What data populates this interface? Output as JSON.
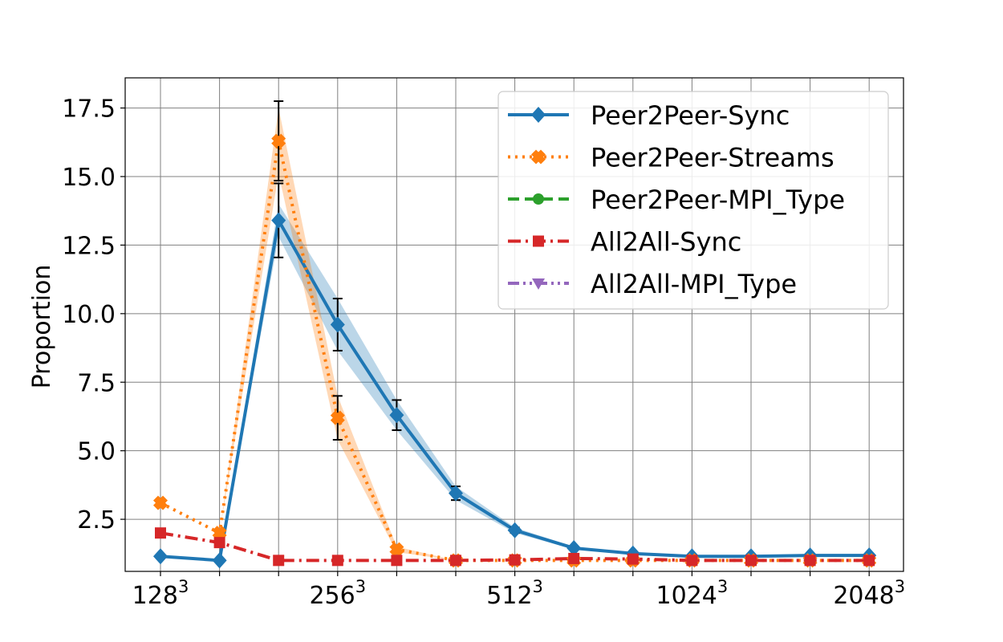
{
  "chart_data": {
    "type": "line",
    "xlabel": "",
    "ylabel": "Proportion",
    "grid": true,
    "legend_position": "top-right",
    "x_tick_labels": [
      {
        "base": "128",
        "exp": "3",
        "index": 0
      },
      {
        "base": "256",
        "exp": "3",
        "index": 3
      },
      {
        "base": "512",
        "exp": "3",
        "index": 6
      },
      {
        "base": "1024",
        "exp": "3",
        "index": 9
      },
      {
        "base": "2048",
        "exp": "3",
        "index": 12
      }
    ],
    "y_ticks": [
      "2.5",
      "5.0",
      "7.5",
      "10.0",
      "12.5",
      "15.0",
      "17.5"
    ],
    "ylim": [
      0.6,
      18.6
    ],
    "series": [
      {
        "name": "Peer2Peer-Sync",
        "color": "#1f77b4",
        "marker": "diamond",
        "linestyle": "solid",
        "values": [
          1.15,
          1.0,
          13.4,
          9.6,
          6.3,
          3.45,
          2.1,
          1.45,
          1.25,
          1.15,
          1.15,
          1.18,
          1.18
        ],
        "errors": [
          0,
          0,
          1.35,
          0.95,
          0.55,
          0.25,
          0.1,
          0.05,
          0.05,
          0.05,
          0.05,
          0.05,
          0.05
        ],
        "band": [
          0,
          0,
          0.6,
          0.95,
          0.55,
          0.25,
          0.1,
          0.05,
          0.05,
          0.05,
          0.05,
          0.05,
          0.05
        ]
      },
      {
        "name": "Peer2Peer-Streams",
        "color": "#ff7f0e",
        "marker": "x",
        "linestyle": "dotted",
        "values": [
          3.1,
          2.0,
          16.3,
          6.2,
          1.4,
          1.0,
          1.0,
          1.0,
          1.0,
          1.0,
          1.0,
          1.0,
          1.0
        ],
        "errors": [
          0,
          0,
          1.45,
          0.8,
          0.1,
          0,
          0,
          0,
          0,
          0,
          0,
          0,
          0
        ],
        "band": [
          0,
          0,
          1.2,
          0.8,
          0.1,
          0,
          0,
          0,
          0,
          0,
          0,
          0,
          0
        ]
      },
      {
        "name": "Peer2Peer-MPI_Type",
        "color": "#2ca02c",
        "marker": "circle",
        "linestyle": "dashed",
        "values": [],
        "errors": [],
        "band": []
      },
      {
        "name": "All2All-Sync",
        "color": "#d62728",
        "marker": "square",
        "linestyle": "dashdot",
        "values": [
          2.0,
          1.65,
          1.0,
          1.0,
          1.0,
          1.0,
          1.02,
          1.07,
          1.05,
          1.0,
          1.0,
          1.0,
          1.0
        ],
        "errors": [
          0,
          0,
          0,
          0,
          0,
          0,
          0,
          0,
          0,
          0,
          0,
          0,
          0
        ],
        "band": [
          0,
          0,
          0,
          0,
          0,
          0,
          0,
          0,
          0,
          0,
          0,
          0,
          0
        ]
      },
      {
        "name": "All2All-MPI_Type",
        "color": "#9467bd",
        "marker": "triangle-down",
        "linestyle": "dashdotdot",
        "values": [],
        "errors": [],
        "band": []
      }
    ]
  }
}
